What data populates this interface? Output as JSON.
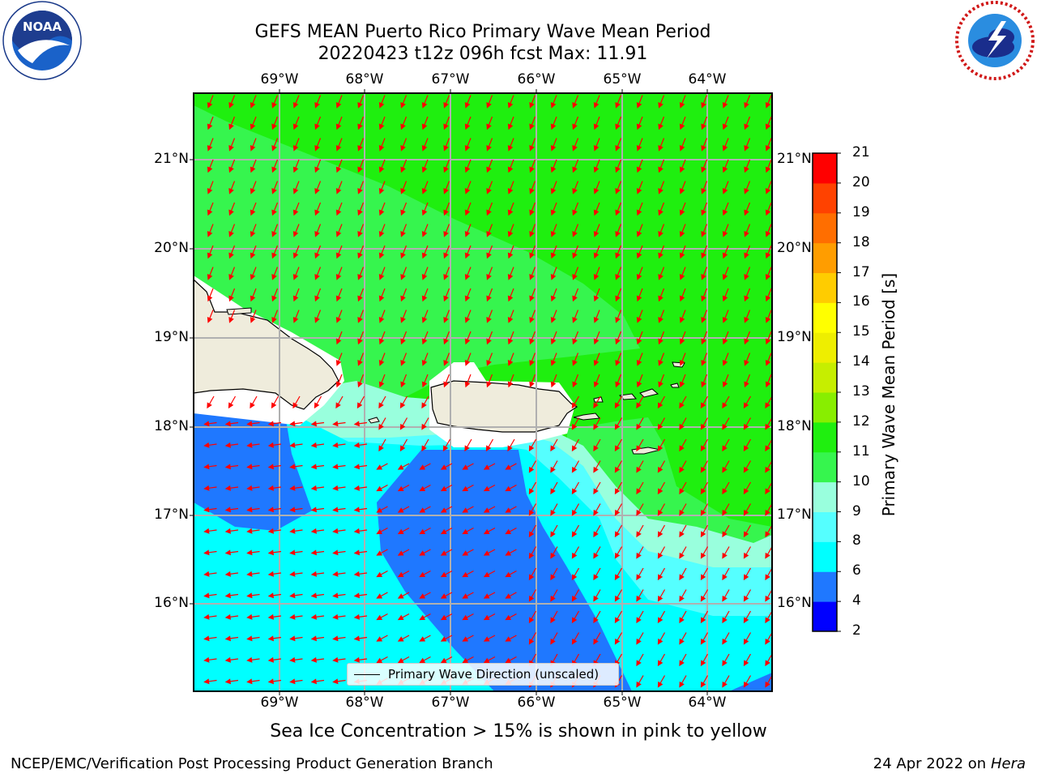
{
  "title": {
    "line1": "GEFS MEAN Puerto Rico Primary Wave Mean Period",
    "line2": "20220423 t12z 096h fcst   Max: 11.91"
  },
  "logos": {
    "left": {
      "name": "noaa-logo",
      "text": "NOAA",
      "ring_text": "NATIONAL OCEANIC AND ATMOSPHERIC ADMINISTRATION · U.S. DEPARTMENT OF COMMERCE"
    },
    "right": {
      "name": "nws-logo",
      "ring_text": "NATIONAL WEATHER SERVICE"
    }
  },
  "map": {
    "lon_labels": [
      "69°W",
      "68°W",
      "67°W",
      "66°W",
      "65°W",
      "64°W"
    ],
    "lat_labels": [
      "21°N",
      "20°N",
      "19°N",
      "18°N",
      "17°N",
      "16°N"
    ],
    "legend_label": "Primary Wave Direction (unscaled)",
    "colors": {
      "land": "#efecdc",
      "arrow": "#ff0000",
      "grid": "#b0b0b0"
    }
  },
  "colorbar": {
    "label": "Primary Wave Mean Period [s]",
    "ticks": [
      "2",
      "4",
      "6",
      "8",
      "9",
      "10",
      "11",
      "12",
      "13",
      "14",
      "15",
      "16",
      "17",
      "18",
      "19",
      "20",
      "21"
    ],
    "colors": [
      "#0000ff",
      "#1f78ff",
      "#00ffff",
      "#55ffff",
      "#99ffdd",
      "#36f54e",
      "#1fef0f",
      "#88ee00",
      "#c6ee00",
      "#eeee00",
      "#ffff00",
      "#ffcc00",
      "#ff9d00",
      "#ff6e00",
      "#ff4200",
      "#ff0000"
    ]
  },
  "caption": "Sea Ice Concentration > 15% is shown in pink to yellow",
  "footer": {
    "left": "NCEP/EMC/Verification Post Processing Product Generation Branch",
    "right_prefix": "24 Apr 2022 on ",
    "right_host": "Hera"
  }
}
